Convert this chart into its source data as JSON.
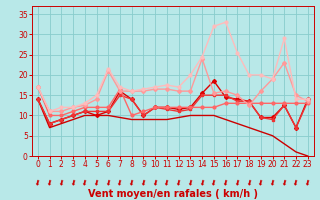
{
  "title": "",
  "xlabel": "Vent moyen/en rafales ( km/h )",
  "ylabel": "",
  "xlim": [
    -0.5,
    23.5
  ],
  "ylim": [
    0,
    37
  ],
  "yticks": [
    0,
    5,
    10,
    15,
    20,
    25,
    30,
    35
  ],
  "xticks": [
    0,
    1,
    2,
    3,
    4,
    5,
    6,
    7,
    8,
    9,
    10,
    11,
    12,
    13,
    14,
    15,
    16,
    17,
    18,
    19,
    20,
    21,
    22,
    23
  ],
  "bg_color": "#b8e8e8",
  "grid_color": "#88cccc",
  "series": [
    {
      "x": [
        0,
        1,
        2,
        3,
        4,
        5,
        6,
        7,
        8,
        9,
        10,
        11,
        12,
        13,
        14,
        15,
        16,
        17,
        18,
        19,
        20,
        21,
        22,
        23
      ],
      "y": [
        14,
        7,
        8,
        9,
        10,
        10,
        10,
        9.5,
        9,
        9,
        9,
        9,
        9.5,
        10,
        10,
        10,
        9,
        8,
        7,
        6,
        5,
        3,
        1,
        0
      ],
      "color": "#cc0000",
      "lw": 1.0,
      "marker": null,
      "ms": 0
    },
    {
      "x": [
        0,
        1,
        2,
        3,
        4,
        5,
        6,
        7,
        8,
        9,
        10,
        11,
        12,
        13,
        14,
        15,
        16,
        17,
        18,
        19,
        20,
        21,
        22,
        23
      ],
      "y": [
        14,
        8,
        9,
        10,
        11,
        10,
        11,
        16,
        14,
        10,
        12,
        12,
        11.5,
        12,
        15.5,
        18.5,
        14.5,
        14,
        13.5,
        9.5,
        9.5,
        12.5,
        7,
        14
      ],
      "color": "#dd0000",
      "lw": 1.0,
      "marker": "D",
      "ms": 2.0
    },
    {
      "x": [
        0,
        1,
        2,
        3,
        4,
        5,
        6,
        7,
        8,
        9,
        10,
        11,
        12,
        13,
        14,
        15,
        16,
        17,
        18,
        19,
        20,
        21,
        22,
        23
      ],
      "y": [
        14,
        8,
        9,
        10,
        11,
        11,
        11,
        15,
        14,
        10,
        12,
        11.5,
        11,
        11.5,
        15,
        15,
        15,
        13.5,
        13.5,
        9.5,
        9,
        12.5,
        7,
        13.5
      ],
      "color": "#ee3333",
      "lw": 1.0,
      "marker": "s",
      "ms": 2.0
    },
    {
      "x": [
        0,
        1,
        2,
        3,
        4,
        5,
        6,
        7,
        8,
        9,
        10,
        11,
        12,
        13,
        14,
        15,
        16,
        17,
        18,
        19,
        20,
        21,
        22,
        23
      ],
      "y": [
        17,
        10,
        10,
        11,
        12,
        12,
        12,
        16.5,
        10,
        11,
        12,
        12,
        12,
        12,
        12,
        12,
        13,
        13,
        13,
        13,
        13,
        13,
        13,
        13
      ],
      "color": "#ff6666",
      "lw": 1.0,
      "marker": "o",
      "ms": 2.0
    },
    {
      "x": [
        0,
        1,
        2,
        3,
        4,
        5,
        6,
        7,
        8,
        9,
        10,
        11,
        12,
        13,
        14,
        15,
        16,
        17,
        18,
        19,
        20,
        21,
        22,
        23
      ],
      "y": [
        17,
        11,
        11,
        12,
        12.5,
        14,
        21,
        16,
        16,
        16,
        16.5,
        16.5,
        16,
        16,
        24,
        15.5,
        16,
        15,
        12.5,
        16,
        19,
        23,
        15,
        13.5
      ],
      "color": "#ff9999",
      "lw": 1.0,
      "marker": "D",
      "ms": 2.0
    },
    {
      "x": [
        0,
        1,
        2,
        3,
        4,
        5,
        6,
        7,
        8,
        9,
        10,
        11,
        12,
        13,
        14,
        15,
        16,
        17,
        18,
        19,
        20,
        21,
        22,
        23
      ],
      "y": [
        17,
        11,
        12,
        12,
        13,
        15,
        21.5,
        17,
        16,
        16.5,
        17,
        17.5,
        17,
        20,
        24.5,
        32,
        33,
        25.5,
        20,
        20,
        19,
        29,
        14,
        14
      ],
      "color": "#ffbbbb",
      "lw": 1.0,
      "marker": "o",
      "ms": 2.0
    }
  ],
  "xlabel_color": "#cc0000",
  "tick_color": "#cc0000",
  "axis_color": "#cc0000",
  "xlabel_fontsize": 7.0,
  "tick_fontsize": 5.5
}
